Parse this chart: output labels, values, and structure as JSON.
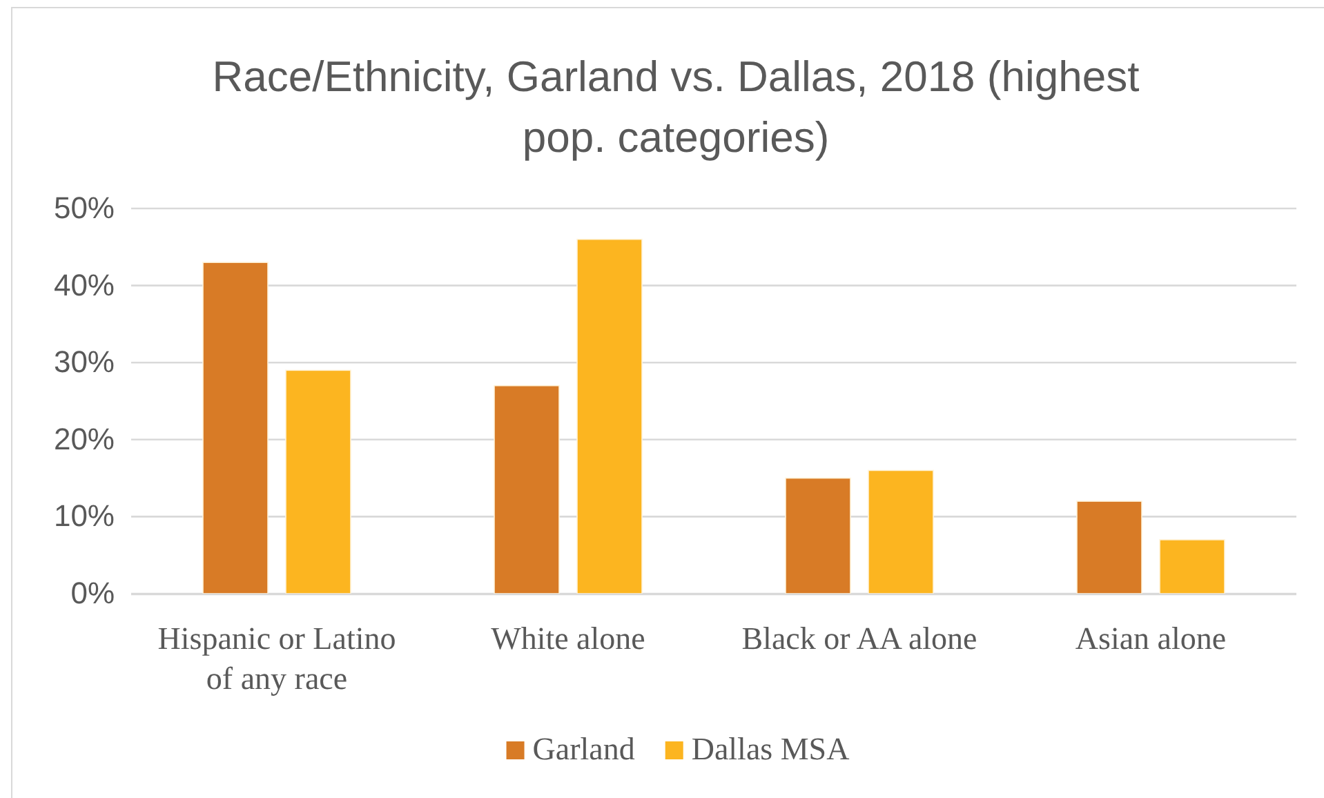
{
  "chart_data": {
    "type": "bar",
    "title": "Race/Ethnicity, Garland vs. Dallas, 2018 (highest pop. categories)",
    "categories": [
      "Hispanic or Latino of any race",
      "White alone",
      "Black or AA alone",
      "Asian alone"
    ],
    "series": [
      {
        "name": "Garland",
        "color": "#d87b26",
        "values": [
          43,
          27,
          15,
          12
        ]
      },
      {
        "name": "Dallas MSA",
        "color": "#fcb520",
        "values": [
          29,
          46,
          16,
          7
        ]
      }
    ],
    "ylim": [
      0,
      50
    ],
    "yticks": [
      {
        "value": 0,
        "label": "0%"
      },
      {
        "value": 10,
        "label": "10%"
      },
      {
        "value": 20,
        "label": "20%"
      },
      {
        "value": 30,
        "label": "30%"
      },
      {
        "value": 40,
        "label": "40%"
      },
      {
        "value": 50,
        "label": "50%"
      }
    ],
    "grid": "y",
    "legend": "bottom"
  }
}
